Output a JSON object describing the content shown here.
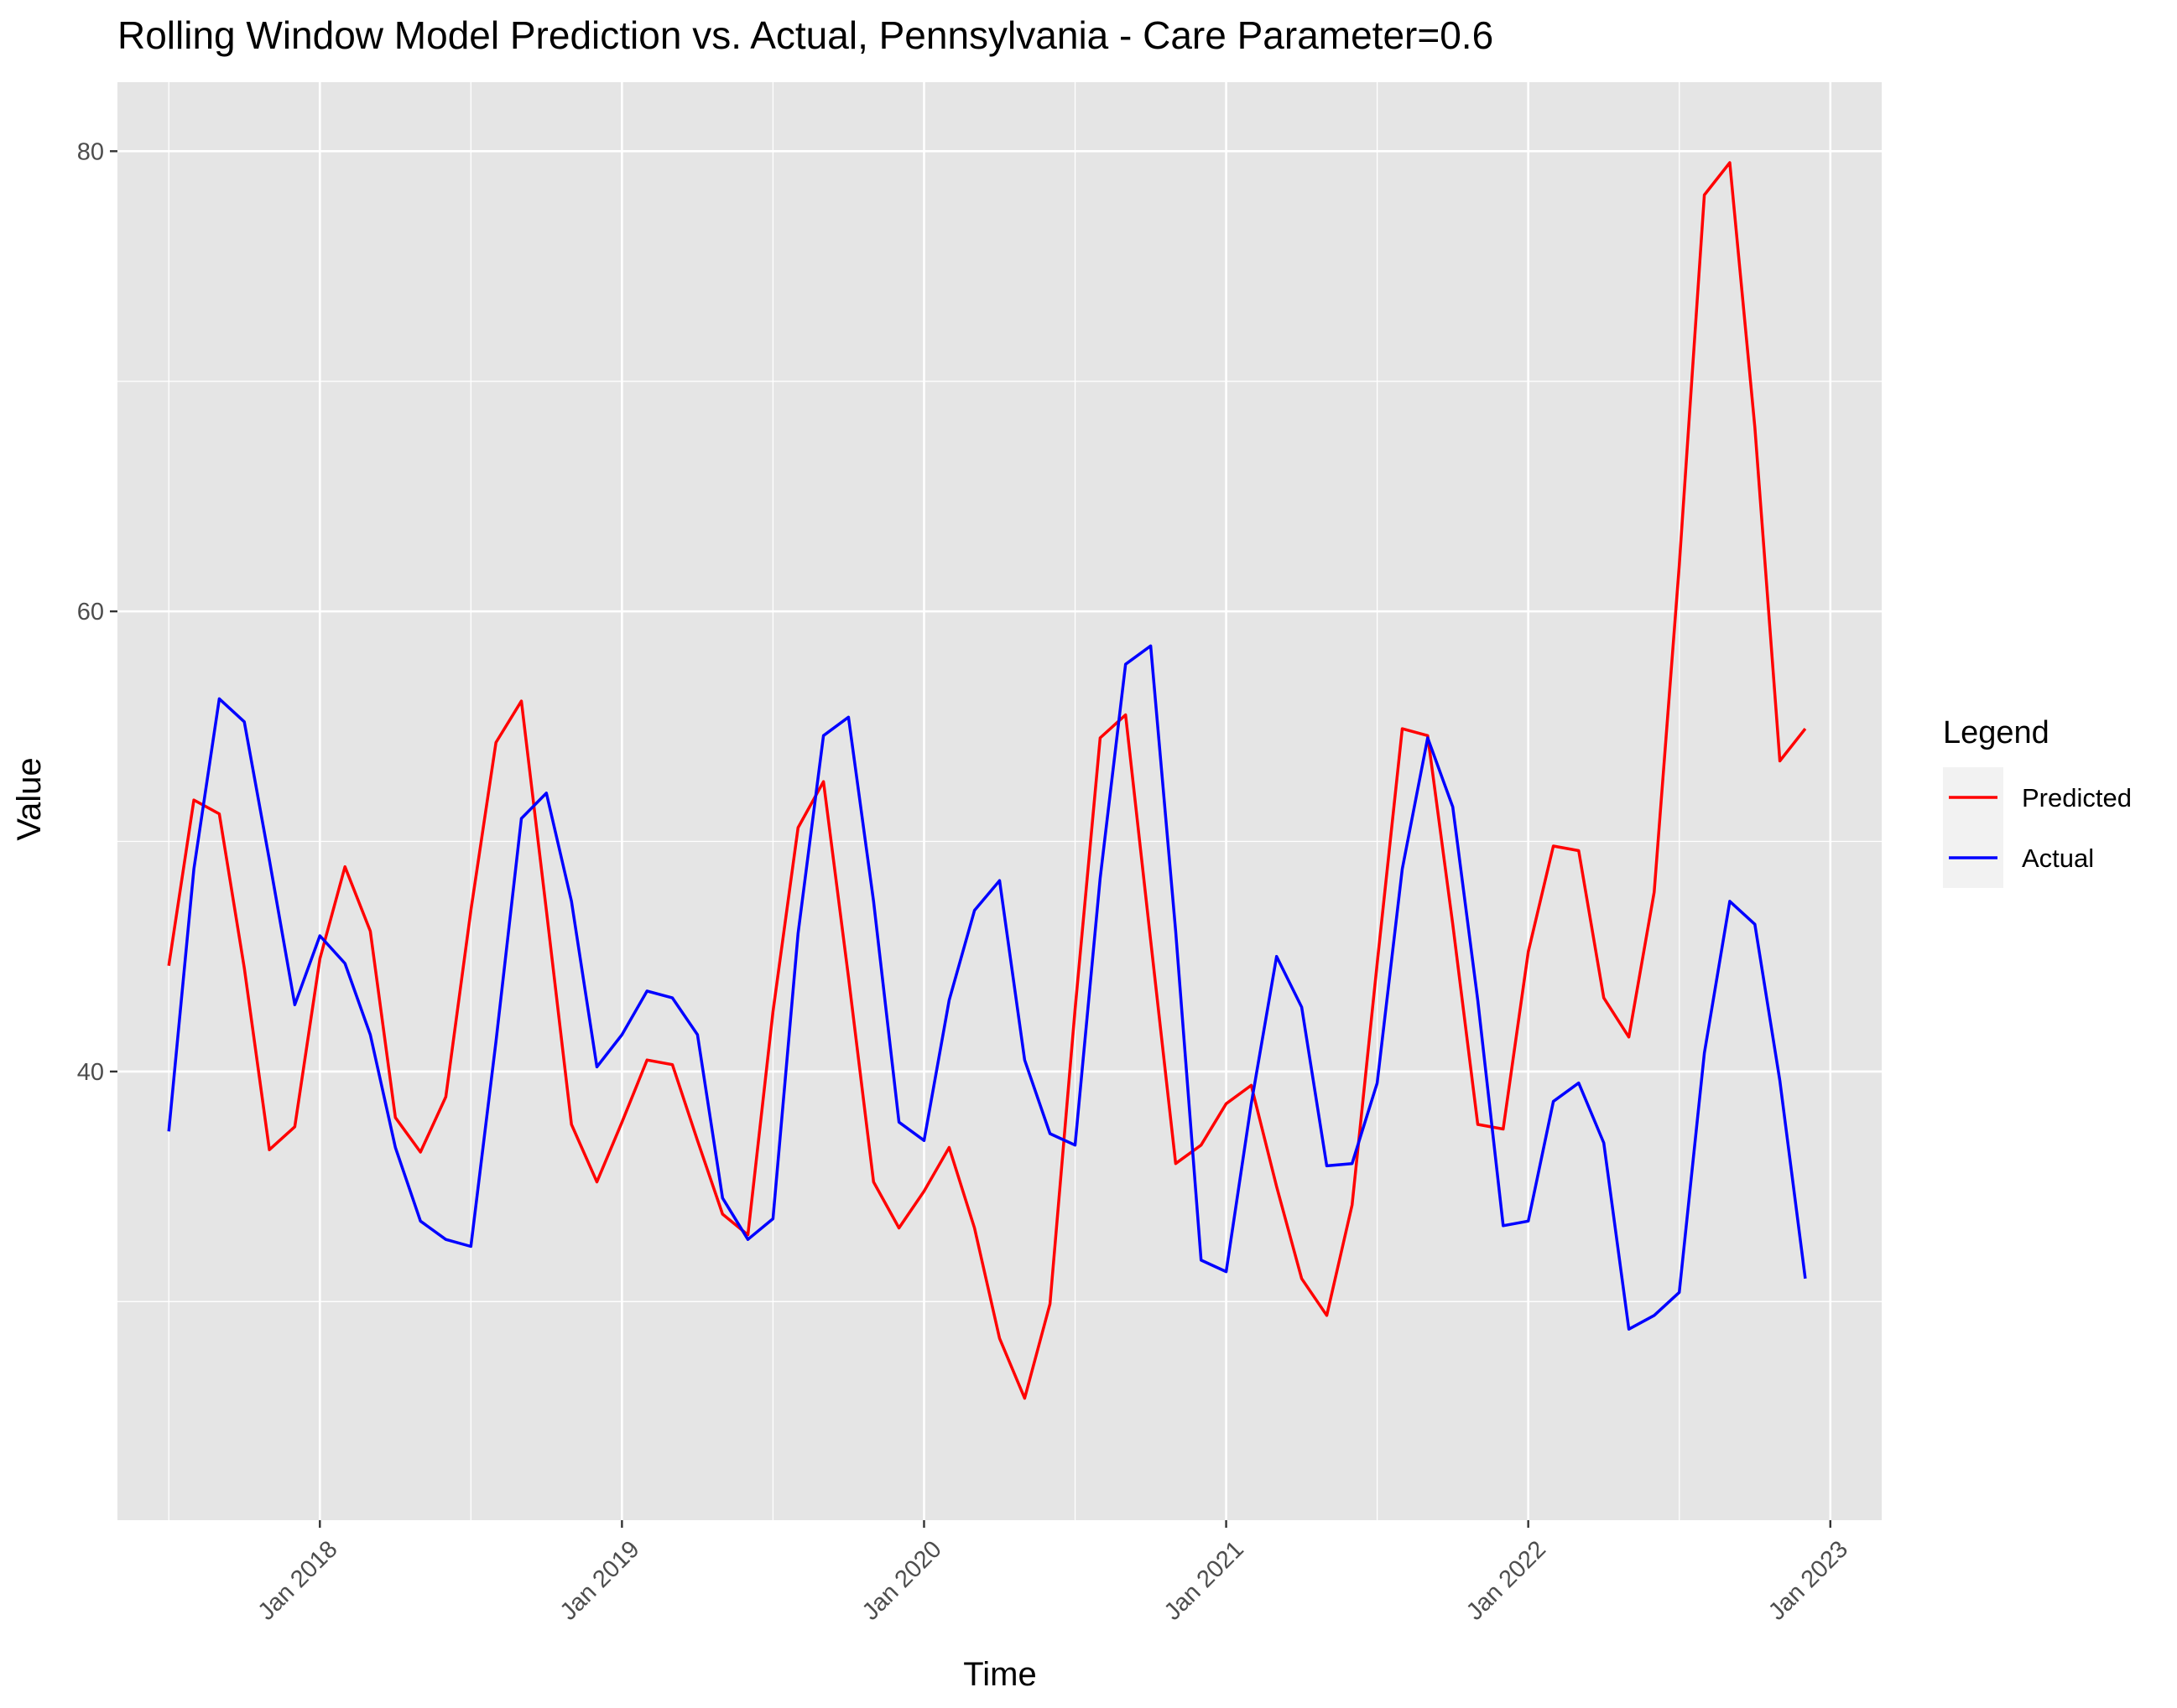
{
  "chart_data": {
    "type": "line",
    "title": "Rolling Window Model Prediction vs. Actual, Pennsylvania - Care Parameter=0.6",
    "xlabel": "Time",
    "ylabel": "Value",
    "ylim": [
      20.5,
      83
    ],
    "xlim": [
      2017.33,
      2023.17
    ],
    "y_ticks": [
      40,
      60,
      80
    ],
    "x_ticks": [
      {
        "value": 2018,
        "label": "Jan 2018"
      },
      {
        "value": 2019,
        "label": "Jan 2019"
      },
      {
        "value": 2020,
        "label": "Jan 2020"
      },
      {
        "value": 2021,
        "label": "Jan 2021"
      },
      {
        "value": 2022,
        "label": "Jan 2022"
      },
      {
        "value": 2023,
        "label": "Jan 2023"
      }
    ],
    "grid": true,
    "legend": {
      "title": "Legend",
      "position": "right"
    },
    "x": [
      2017.5,
      2017.583,
      2017.667,
      2017.75,
      2017.833,
      2017.917,
      2018.0,
      2018.083,
      2018.167,
      2018.25,
      2018.333,
      2018.417,
      2018.5,
      2018.583,
      2018.667,
      2018.75,
      2018.833,
      2018.917,
      2019.0,
      2019.083,
      2019.167,
      2019.25,
      2019.333,
      2019.417,
      2019.5,
      2019.583,
      2019.667,
      2019.75,
      2019.833,
      2019.917,
      2020.0,
      2020.083,
      2020.167,
      2020.25,
      2020.333,
      2020.417,
      2020.5,
      2020.583,
      2020.667,
      2020.75,
      2020.833,
      2020.917,
      2021.0,
      2021.083,
      2021.167,
      2021.25,
      2021.333,
      2021.417,
      2021.5,
      2021.583,
      2021.667,
      2021.75,
      2021.833,
      2021.917,
      2022.0,
      2022.083,
      2022.167,
      2022.25,
      2022.333,
      2022.417,
      2022.5,
      2022.583,
      2022.667,
      2022.75,
      2022.833,
      2022.917
    ],
    "series": [
      {
        "name": "Predicted",
        "color": "#ff0000",
        "values": [
          44.6,
          51.8,
          51.2,
          44.5,
          36.6,
          37.6,
          44.9,
          48.9,
          46.1,
          38.0,
          36.5,
          38.9,
          47.0,
          54.3,
          56.1,
          47.0,
          37.7,
          35.2,
          37.8,
          40.5,
          40.3,
          37.0,
          33.8,
          32.9,
          42.6,
          50.6,
          52.6,
          44.1,
          35.2,
          33.2,
          34.8,
          36.7,
          33.2,
          28.4,
          25.8,
          29.9,
          42.7,
          54.5,
          55.5,
          45.7,
          36.0,
          36.8,
          38.6,
          39.4,
          35.0,
          31.0,
          29.4,
          34.2,
          44.7,
          54.9,
          54.6,
          46.4,
          37.7,
          37.5,
          45.2,
          49.8,
          49.6,
          43.2,
          41.5,
          47.8,
          62.0,
          78.1,
          79.5,
          68.0,
          53.5,
          54.9
        ]
      },
      {
        "name": "Actual",
        "color": "#0000ff",
        "values": [
          37.4,
          48.8,
          56.2,
          55.2,
          49.2,
          42.9,
          45.9,
          44.7,
          41.6,
          36.7,
          33.5,
          32.7,
          32.4,
          41.3,
          51.0,
          52.1,
          47.4,
          40.2,
          41.6,
          43.5,
          43.2,
          41.6,
          34.5,
          32.7,
          33.6,
          46.0,
          54.6,
          55.4,
          47.4,
          37.8,
          37.0,
          43.1,
          47.0,
          48.3,
          40.5,
          37.3,
          36.8,
          48.4,
          57.7,
          58.5,
          46.1,
          31.8,
          31.3,
          38.6,
          45.0,
          42.8,
          35.9,
          36.0,
          39.5,
          48.8,
          54.5,
          51.5,
          43.1,
          33.3,
          33.5,
          38.7,
          39.5,
          36.9,
          28.8,
          29.4,
          30.4,
          40.8,
          47.4,
          46.4,
          39.6,
          31.0
        ]
      }
    ]
  }
}
